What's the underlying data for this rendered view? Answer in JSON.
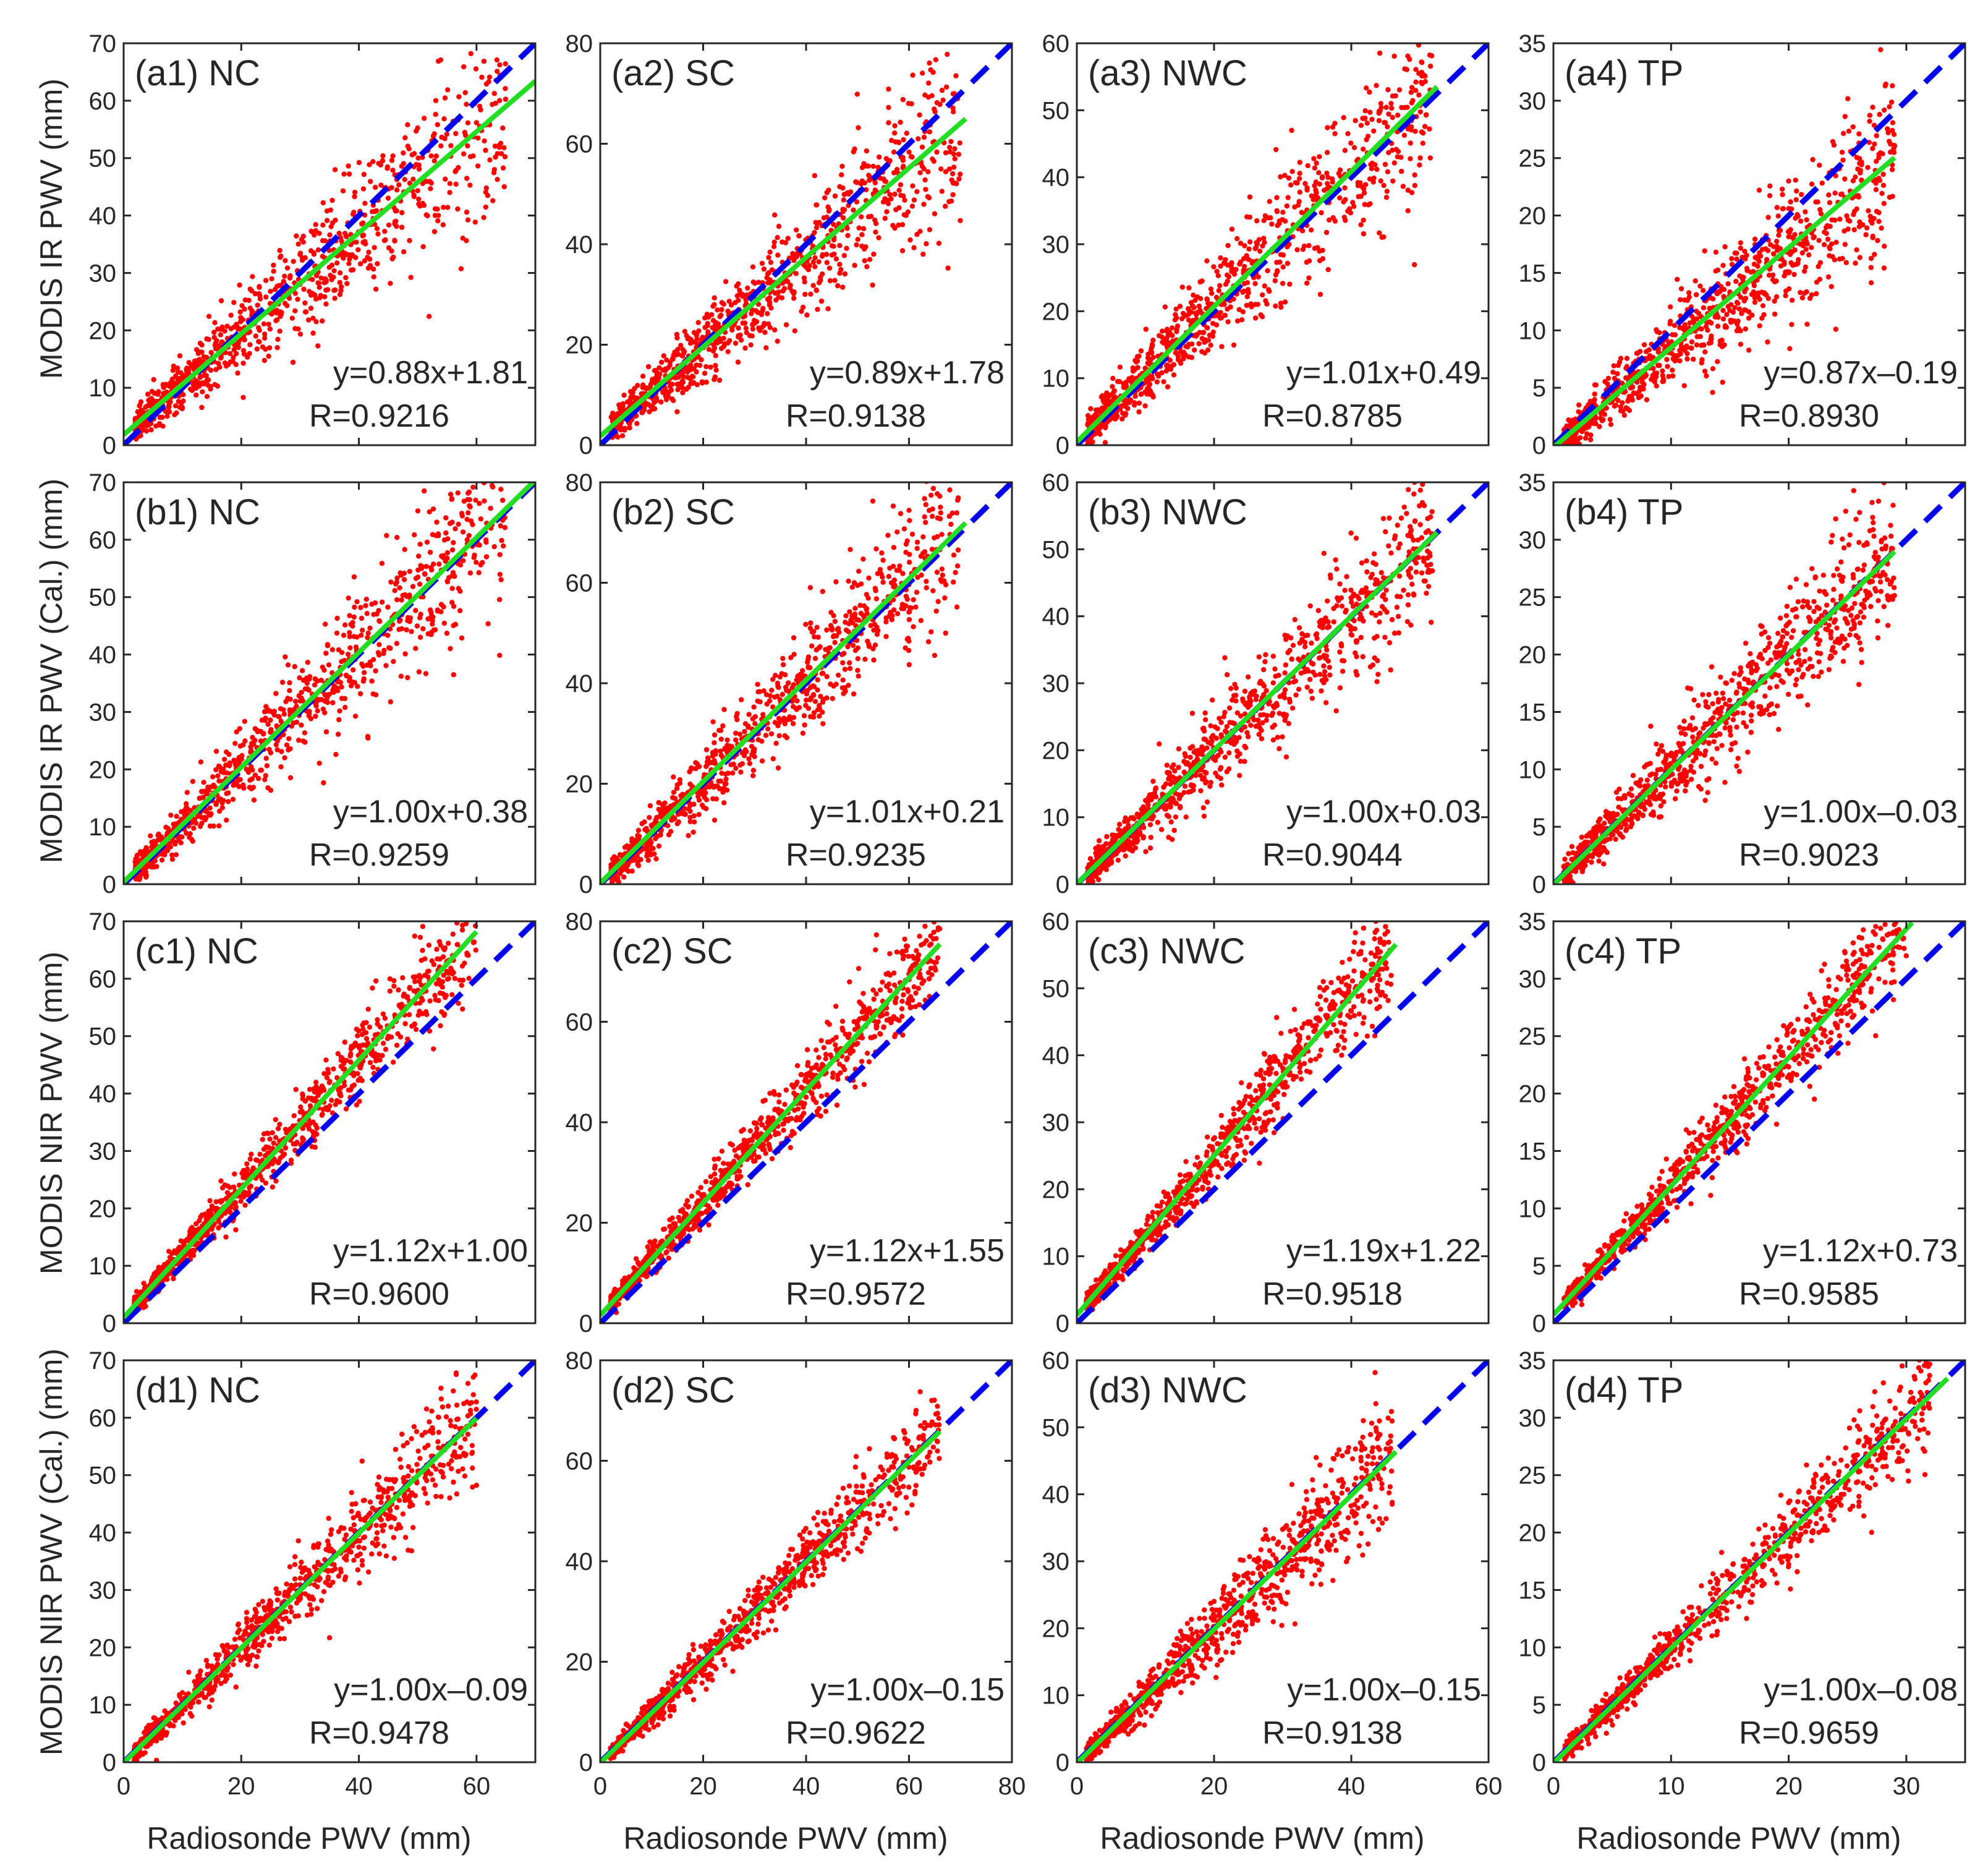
{
  "figure": {
    "x_axis_title": "Radiosonde PWV (mm)",
    "row_y_titles": [
      "MODIS IR PWV (mm)",
      "MODIS IR PWV (Cal.) (mm)",
      "MODIS NIR PWV (mm)",
      "MODIS NIR PWV (Cal.) (mm)"
    ],
    "colors": {
      "points": "#ff0000",
      "fit_line": "#22dd22",
      "one_to_one": "#0000ee",
      "axes": "#262626"
    }
  },
  "chart_data": [
    {
      "type": "scatter",
      "label": "(a1) NC",
      "region": "NC",
      "row": 0,
      "col": 0,
      "xlim": [
        0,
        70
      ],
      "ylim": [
        0,
        70
      ],
      "x_ticks": [
        0,
        20,
        40,
        60
      ],
      "y_ticks": [
        0,
        10,
        20,
        30,
        40,
        50,
        60,
        70
      ],
      "x_ticklabels": [
        "0",
        "20",
        "40",
        "60"
      ],
      "y_ticklabels": [
        "0",
        "10",
        "20",
        "30",
        "40",
        "50",
        "60",
        "70"
      ],
      "slope": 0.88,
      "intercept": 1.81,
      "r": 0.9216,
      "eq_text": "y=0.88x+1.81",
      "r_text": "R=0.9216",
      "fit_x_end": 70,
      "data_max": 65,
      "spread": 0.2
    },
    {
      "type": "scatter",
      "label": "(a2) SC",
      "region": "SC",
      "row": 0,
      "col": 1,
      "xlim": [
        0,
        80
      ],
      "ylim": [
        0,
        80
      ],
      "x_ticks": [
        0,
        20,
        40,
        60,
        80
      ],
      "y_ticks": [
        0,
        20,
        40,
        60,
        80
      ],
      "x_ticklabels": [
        "0",
        "20",
        "40",
        "60",
        "80"
      ],
      "y_ticklabels": [
        "0",
        "20",
        "40",
        "60",
        "80"
      ],
      "slope": 0.89,
      "intercept": 1.78,
      "r": 0.9138,
      "eq_text": "y=0.89x+1.78",
      "r_text": "R=0.9138",
      "fit_x_end": 71,
      "data_max": 70,
      "spread": 0.2
    },
    {
      "type": "scatter",
      "label": "(a3) NWC",
      "region": "NWC",
      "row": 0,
      "col": 2,
      "xlim": [
        0,
        60
      ],
      "ylim": [
        0,
        60
      ],
      "x_ticks": [
        0,
        20,
        40,
        60
      ],
      "y_ticks": [
        0,
        10,
        20,
        30,
        40,
        50,
        60
      ],
      "x_ticklabels": [
        "0",
        "20",
        "40",
        "60"
      ],
      "y_ticklabels": [
        "0",
        "10",
        "20",
        "30",
        "40",
        "50",
        "60"
      ],
      "slope": 1.01,
      "intercept": 0.49,
      "r": 0.8785,
      "eq_text": "y=1.01x+0.49",
      "r_text": "R=0.8785",
      "fit_x_end": 52.5,
      "data_max": 52,
      "spread": 0.22
    },
    {
      "type": "scatter",
      "label": "(a4) TP",
      "region": "TP",
      "row": 0,
      "col": 3,
      "xlim": [
        0,
        35
      ],
      "ylim": [
        0,
        35
      ],
      "x_ticks": [
        0,
        10,
        20,
        30
      ],
      "y_ticks": [
        0,
        5,
        10,
        15,
        20,
        25,
        30,
        35
      ],
      "x_ticklabels": [
        "0",
        "10",
        "20",
        "30"
      ],
      "y_ticklabels": [
        "0",
        "5",
        "10",
        "15",
        "20",
        "25",
        "30",
        "35"
      ],
      "slope": 0.87,
      "intercept": -0.19,
      "r": 0.893,
      "eq_text": "y=0.87x–0.19",
      "r_text": "R=0.8930",
      "fit_x_end": 29,
      "data_max": 29,
      "spread": 0.22
    },
    {
      "type": "scatter",
      "label": "(b1) NC",
      "region": "NC",
      "row": 1,
      "col": 0,
      "xlim": [
        0,
        70
      ],
      "ylim": [
        0,
        70
      ],
      "x_ticks": [
        0,
        20,
        40,
        60
      ],
      "y_ticks": [
        0,
        10,
        20,
        30,
        40,
        50,
        60,
        70
      ],
      "x_ticklabels": [
        "0",
        "20",
        "40",
        "60"
      ],
      "y_ticklabels": [
        "0",
        "10",
        "20",
        "30",
        "40",
        "50",
        "60",
        "70"
      ],
      "slope": 1.0,
      "intercept": 0.38,
      "r": 0.9259,
      "eq_text": "y=1.00x+0.38",
      "r_text": "R=0.9259",
      "fit_x_end": 70,
      "data_max": 65,
      "spread": 0.2
    },
    {
      "type": "scatter",
      "label": "(b2) SC",
      "region": "SC",
      "row": 1,
      "col": 1,
      "xlim": [
        0,
        80
      ],
      "ylim": [
        0,
        80
      ],
      "x_ticks": [
        0,
        20,
        40,
        60,
        80
      ],
      "y_ticks": [
        0,
        20,
        40,
        60,
        80
      ],
      "x_ticklabels": [
        "0",
        "20",
        "40",
        "60",
        "80"
      ],
      "y_ticklabels": [
        "0",
        "20",
        "40",
        "60",
        "80"
      ],
      "slope": 1.01,
      "intercept": 0.21,
      "r": 0.9235,
      "eq_text": "y=1.01x+0.21",
      "r_text": "R=0.9235",
      "fit_x_end": 71,
      "data_max": 70,
      "spread": 0.2
    },
    {
      "type": "scatter",
      "label": "(b3) NWC",
      "region": "NWC",
      "row": 1,
      "col": 2,
      "xlim": [
        0,
        60
      ],
      "ylim": [
        0,
        60
      ],
      "x_ticks": [
        0,
        20,
        40,
        60
      ],
      "y_ticks": [
        0,
        10,
        20,
        30,
        40,
        50,
        60
      ],
      "x_ticklabels": [
        "0",
        "20",
        "40",
        "60"
      ],
      "y_ticklabels": [
        "0",
        "10",
        "20",
        "30",
        "40",
        "50",
        "60"
      ],
      "slope": 1.0,
      "intercept": 0.03,
      "r": 0.9044,
      "eq_text": "y=1.00x+0.03",
      "r_text": "R=0.9044",
      "fit_x_end": 52.5,
      "data_max": 52,
      "spread": 0.2
    },
    {
      "type": "scatter",
      "label": "(b4) TP",
      "region": "TP",
      "row": 1,
      "col": 3,
      "xlim": [
        0,
        35
      ],
      "ylim": [
        0,
        35
      ],
      "x_ticks": [
        0,
        10,
        20,
        30
      ],
      "y_ticks": [
        0,
        5,
        10,
        15,
        20,
        25,
        30,
        35
      ],
      "x_ticklabels": [
        "0",
        "10",
        "20",
        "30"
      ],
      "y_ticklabels": [
        "0",
        "5",
        "10",
        "15",
        "20",
        "25",
        "30",
        "35"
      ],
      "slope": 1.0,
      "intercept": -0.03,
      "r": 0.9023,
      "eq_text": "y=1.00x–0.03",
      "r_text": "R=0.9023",
      "fit_x_end": 29,
      "data_max": 29,
      "spread": 0.2
    },
    {
      "type": "scatter",
      "label": "(c1) NC",
      "region": "NC",
      "row": 2,
      "col": 0,
      "xlim": [
        0,
        70
      ],
      "ylim": [
        0,
        70
      ],
      "x_ticks": [
        0,
        20,
        40,
        60
      ],
      "y_ticks": [
        0,
        10,
        20,
        30,
        40,
        50,
        60,
        70
      ],
      "x_ticklabels": [
        "0",
        "20",
        "40",
        "60"
      ],
      "y_ticklabels": [
        "0",
        "10",
        "20",
        "30",
        "40",
        "50",
        "60",
        "70"
      ],
      "slope": 1.12,
      "intercept": 1.0,
      "r": 0.96,
      "eq_text": "y=1.12x+1.00",
      "r_text": "R=0.9600",
      "fit_x_end": 60,
      "data_max": 60,
      "spread": 0.13
    },
    {
      "type": "scatter",
      "label": "(c2) SC",
      "region": "SC",
      "row": 2,
      "col": 1,
      "xlim": [
        0,
        80
      ],
      "ylim": [
        0,
        80
      ],
      "x_ticks": [
        0,
        20,
        40,
        60,
        80
      ],
      "y_ticks": [
        0,
        20,
        40,
        60,
        80
      ],
      "x_ticklabels": [
        "0",
        "20",
        "40",
        "60",
        "80"
      ],
      "y_ticklabels": [
        "0",
        "20",
        "40",
        "60",
        "80"
      ],
      "slope": 1.12,
      "intercept": 1.55,
      "r": 0.9572,
      "eq_text": "y=1.12x+1.55",
      "r_text": "R=0.9572",
      "fit_x_end": 66,
      "data_max": 66,
      "spread": 0.13
    },
    {
      "type": "scatter",
      "label": "(c3) NWC",
      "region": "NWC",
      "row": 2,
      "col": 2,
      "xlim": [
        0,
        60
      ],
      "ylim": [
        0,
        60
      ],
      "x_ticks": [
        0,
        20,
        40,
        60
      ],
      "y_ticks": [
        0,
        10,
        20,
        30,
        40,
        50,
        60
      ],
      "x_ticklabels": [
        "0",
        "20",
        "40",
        "60"
      ],
      "y_ticklabels": [
        "0",
        "10",
        "20",
        "30",
        "40",
        "50",
        "60"
      ],
      "slope": 1.19,
      "intercept": 1.22,
      "r": 0.9518,
      "eq_text": "y=1.19x+1.22",
      "r_text": "R=0.9518",
      "fit_x_end": 46.5,
      "data_max": 46,
      "spread": 0.14
    },
    {
      "type": "scatter",
      "label": "(c4) TP",
      "region": "TP",
      "row": 2,
      "col": 3,
      "xlim": [
        0,
        35
      ],
      "ylim": [
        0,
        35
      ],
      "x_ticks": [
        0,
        10,
        20,
        30
      ],
      "y_ticks": [
        0,
        5,
        10,
        15,
        20,
        25,
        30,
        35
      ],
      "x_ticklabels": [
        "0",
        "10",
        "20",
        "30"
      ],
      "y_ticklabels": [
        "0",
        "5",
        "10",
        "15",
        "20",
        "25",
        "30",
        "35"
      ],
      "slope": 1.12,
      "intercept": 0.73,
      "r": 0.9585,
      "eq_text": "y=1.12x+0.73",
      "r_text": "R=0.9585",
      "fit_x_end": 30.5,
      "data_max": 30,
      "spread": 0.13
    },
    {
      "type": "scatter",
      "label": "(d1) NC",
      "region": "NC",
      "row": 3,
      "col": 0,
      "xlim": [
        0,
        70
      ],
      "ylim": [
        0,
        70
      ],
      "x_ticks": [
        0,
        20,
        40,
        60
      ],
      "y_ticks": [
        0,
        10,
        20,
        30,
        40,
        50,
        60,
        70
      ],
      "x_ticklabels": [
        "0",
        "20",
        "40",
        "60"
      ],
      "y_ticklabels": [
        "0",
        "10",
        "20",
        "30",
        "40",
        "50",
        "60",
        "70"
      ],
      "slope": 1.0,
      "intercept": -0.09,
      "r": 0.9478,
      "eq_text": "y=1.00x–0.09",
      "r_text": "R=0.9478",
      "fit_x_end": 60,
      "data_max": 60,
      "spread": 0.14
    },
    {
      "type": "scatter",
      "label": "(d2) SC",
      "region": "SC",
      "row": 3,
      "col": 1,
      "xlim": [
        0,
        80
      ],
      "ylim": [
        0,
        80
      ],
      "x_ticks": [
        0,
        20,
        40,
        60,
        80
      ],
      "y_ticks": [
        0,
        20,
        40,
        60,
        80
      ],
      "x_ticklabels": [
        "0",
        "20",
        "40",
        "60",
        "80"
      ],
      "y_ticklabels": [
        "0",
        "20",
        "40",
        "60",
        "80"
      ],
      "slope": 1.0,
      "intercept": -0.15,
      "r": 0.9622,
      "eq_text": "y=1.00x–0.15",
      "r_text": "R=0.9622",
      "fit_x_end": 66,
      "data_max": 66,
      "spread": 0.12
    },
    {
      "type": "scatter",
      "label": "(d3) NWC",
      "region": "NWC",
      "row": 3,
      "col": 2,
      "xlim": [
        0,
        60
      ],
      "ylim": [
        0,
        60
      ],
      "x_ticks": [
        0,
        20,
        40,
        60
      ],
      "y_ticks": [
        0,
        10,
        20,
        30,
        40,
        50,
        60
      ],
      "x_ticklabels": [
        "0",
        "20",
        "40",
        "60"
      ],
      "y_ticklabels": [
        "0",
        "10",
        "20",
        "30",
        "40",
        "50",
        "60"
      ],
      "slope": 1.0,
      "intercept": -0.15,
      "r": 0.9138,
      "eq_text": "y=1.00x–0.15",
      "r_text": "R=0.9138",
      "fit_x_end": 46.5,
      "data_max": 46,
      "spread": 0.17
    },
    {
      "type": "scatter",
      "label": "(d4) TP",
      "region": "TP",
      "row": 3,
      "col": 3,
      "xlim": [
        0,
        35
      ],
      "ylim": [
        0,
        35
      ],
      "x_ticks": [
        0,
        10,
        20,
        30
      ],
      "y_ticks": [
        0,
        5,
        10,
        15,
        20,
        25,
        30,
        35
      ],
      "x_ticklabels": [
        "0",
        "10",
        "20",
        "30"
      ],
      "y_ticklabels": [
        "0",
        "5",
        "10",
        "15",
        "20",
        "25",
        "30",
        "35"
      ],
      "slope": 1.0,
      "intercept": -0.08,
      "r": 0.9659,
      "eq_text": "y=1.00x–0.08",
      "r_text": "R=0.9659",
      "fit_x_end": 33.5,
      "data_max": 32,
      "spread": 0.12
    }
  ]
}
